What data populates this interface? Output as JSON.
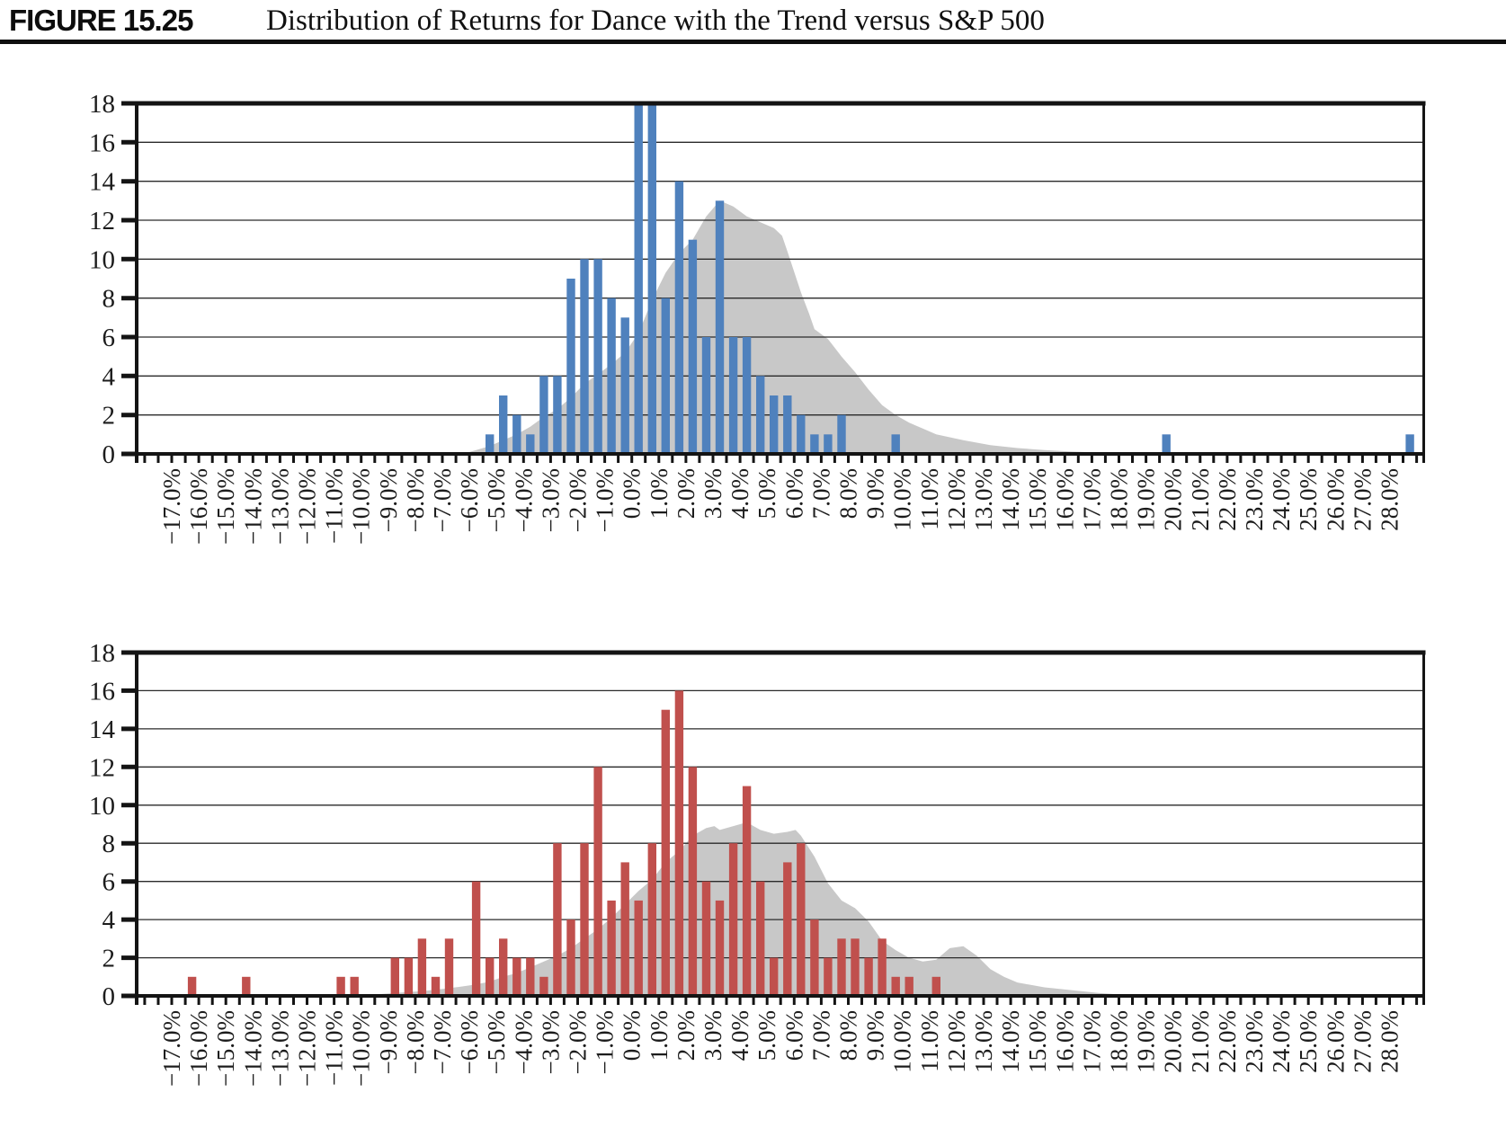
{
  "header": {
    "figure_label": "FIGURE 15.25",
    "title": "Distribution of Returns for Dance with the Trend versus S&P 500"
  },
  "x_axis": {
    "labels": [
      "−17.0%",
      "−16.0%",
      "−15.0%",
      "−14.0%",
      "−13.0%",
      "−12.0%",
      "−11.0%",
      "−10.0%",
      "−9.0%",
      "−8.0%",
      "−7.0%",
      "−6.0%",
      "−5.0%",
      "−4.0%",
      "−3.0%",
      "−2.0%",
      "−1.0%",
      "0.0%",
      "1.0%",
      "2.0%",
      "3.0%",
      "4.0%",
      "5.0%",
      "6.0%",
      "7.0%",
      "8.0%",
      "9.0%",
      "10.0%",
      "11.0%",
      "12.0%",
      "13.0%",
      "14.0%",
      "15.0%",
      "16.0%",
      "17.0%",
      "18.0%",
      "19.0%",
      "20.0%",
      "21.0%",
      "22.0%",
      "23.0%",
      "24.0%",
      "25.0%",
      "26.0%",
      "27.0%",
      "28.0%"
    ],
    "label_start_pct": -17,
    "label_step_pct": 1,
    "tick_step_pct": 0.5
  },
  "y_axis": {
    "labels": [
      "0",
      "2",
      "4",
      "6",
      "8",
      "10",
      "12",
      "14",
      "16",
      "18"
    ],
    "min": 0,
    "max": 18,
    "step": 2
  },
  "chart_data": [
    {
      "type": "bar",
      "position": "top",
      "bar_color": "#4f81bd",
      "area_color": "#c8c8c8",
      "ylim": [
        0,
        18
      ],
      "bin_width_pct": 0.5,
      "note": "bars at 0.0% and 0.5% are clipped at the plot top (value >= 18)",
      "bars": [
        [
          -5.5,
          1
        ],
        [
          -5,
          3
        ],
        [
          -4.5,
          2
        ],
        [
          -4,
          1
        ],
        [
          -3.5,
          4
        ],
        [
          -3,
          4
        ],
        [
          -2.5,
          9
        ],
        [
          -2,
          10
        ],
        [
          -1.5,
          10
        ],
        [
          -1,
          8
        ],
        [
          -0.5,
          7
        ],
        [
          0,
          18
        ],
        [
          0.5,
          18
        ],
        [
          1,
          8
        ],
        [
          1.5,
          14
        ],
        [
          2,
          11
        ],
        [
          2.5,
          6
        ],
        [
          3,
          13
        ],
        [
          3.5,
          6
        ],
        [
          4,
          6
        ],
        [
          4.5,
          4
        ],
        [
          5,
          3
        ],
        [
          5.5,
          3
        ],
        [
          6,
          2
        ],
        [
          6.5,
          1
        ],
        [
          7,
          1
        ],
        [
          7.5,
          2
        ],
        [
          9.5,
          1
        ],
        [
          19.5,
          1
        ],
        [
          28.5,
          1
        ]
      ],
      "area": [
        [
          -6.5,
          0
        ],
        [
          -6,
          0.2
        ],
        [
          -5.5,
          0.4
        ],
        [
          -5,
          0.7
        ],
        [
          -4.5,
          1
        ],
        [
          -4,
          1.4
        ],
        [
          -3.5,
          1.9
        ],
        [
          -3,
          2.3
        ],
        [
          -2.5,
          2.9
        ],
        [
          -2,
          3.6
        ],
        [
          -1.5,
          4.1
        ],
        [
          -1,
          4.6
        ],
        [
          -0.5,
          5.2
        ],
        [
          0,
          6.2
        ],
        [
          0.5,
          7.9
        ],
        [
          1,
          9.3
        ],
        [
          1.5,
          10.3
        ],
        [
          2,
          11
        ],
        [
          2.5,
          12.2
        ],
        [
          3,
          13
        ],
        [
          3.5,
          12.7
        ],
        [
          4,
          12.2
        ],
        [
          4.5,
          11.9
        ],
        [
          5,
          11.6
        ],
        [
          5.3,
          11.2
        ],
        [
          5.5,
          10.4
        ],
        [
          6,
          8.3
        ],
        [
          6.3,
          7.2
        ],
        [
          6.5,
          6.4
        ],
        [
          7,
          5.9
        ],
        [
          7.5,
          5
        ],
        [
          8,
          4.2
        ],
        [
          8.5,
          3.3
        ],
        [
          9,
          2.5
        ],
        [
          9.5,
          2
        ],
        [
          10,
          1.6
        ],
        [
          10.5,
          1.3
        ],
        [
          11,
          1
        ],
        [
          12,
          0.7
        ],
        [
          13,
          0.45
        ],
        [
          14,
          0.3
        ],
        [
          15,
          0.2
        ],
        [
          16,
          0.12
        ],
        [
          17,
          0.07
        ],
        [
          18,
          0.03
        ],
        [
          19,
          0
        ]
      ]
    },
    {
      "type": "bar",
      "position": "bottom",
      "bar_color": "#c0504d",
      "area_color": "#c8c8c8",
      "ylim": [
        0,
        18
      ],
      "bin_width_pct": 0.5,
      "bars": [
        [
          -16.5,
          1
        ],
        [
          -14.5,
          1
        ],
        [
          -11,
          1
        ],
        [
          -10.5,
          1
        ],
        [
          -9,
          2
        ],
        [
          -8.5,
          2
        ],
        [
          -8,
          3
        ],
        [
          -7.5,
          1
        ],
        [
          -7,
          3
        ],
        [
          -6,
          6
        ],
        [
          -5.5,
          2
        ],
        [
          -5,
          3
        ],
        [
          -4.5,
          2
        ],
        [
          -4,
          2
        ],
        [
          -3.5,
          1
        ],
        [
          -3,
          8
        ],
        [
          -2.5,
          4
        ],
        [
          -2,
          8
        ],
        [
          -1.5,
          12
        ],
        [
          -1,
          5
        ],
        [
          -0.5,
          7
        ],
        [
          0,
          5
        ],
        [
          0.5,
          8
        ],
        [
          1,
          15
        ],
        [
          1.5,
          16
        ],
        [
          2,
          12
        ],
        [
          2.5,
          6
        ],
        [
          3,
          5
        ],
        [
          3.5,
          8
        ],
        [
          4,
          11
        ],
        [
          4.5,
          6
        ],
        [
          5,
          2
        ],
        [
          5.5,
          7
        ],
        [
          6,
          8
        ],
        [
          6.5,
          4
        ],
        [
          7,
          2
        ],
        [
          7.5,
          3
        ],
        [
          8,
          3
        ],
        [
          8.5,
          2
        ],
        [
          9,
          3
        ],
        [
          9.5,
          1
        ],
        [
          10,
          1
        ],
        [
          11,
          1
        ]
      ],
      "area": [
        [
          -11.5,
          0
        ],
        [
          -10.5,
          0.05
        ],
        [
          -9.5,
          0.1
        ],
        [
          -9,
          0.15
        ],
        [
          -8,
          0.25
        ],
        [
          -7,
          0.4
        ],
        [
          -6,
          0.6
        ],
        [
          -5.5,
          0.75
        ],
        [
          -5,
          1
        ],
        [
          -4.5,
          1.2
        ],
        [
          -4,
          1.5
        ],
        [
          -3.5,
          1.8
        ],
        [
          -3,
          2.1
        ],
        [
          -2.5,
          2.5
        ],
        [
          -2,
          3
        ],
        [
          -1.5,
          3.5
        ],
        [
          -1,
          4.1
        ],
        [
          -0.5,
          4.8
        ],
        [
          0,
          5.5
        ],
        [
          0.5,
          6.1
        ],
        [
          1,
          7
        ],
        [
          1.5,
          7.6
        ],
        [
          2,
          8.4
        ],
        [
          2.5,
          8.8
        ],
        [
          2.8,
          8.9
        ],
        [
          3,
          8.7
        ],
        [
          3.5,
          8.9
        ],
        [
          4,
          9.1
        ],
        [
          4.5,
          8.7
        ],
        [
          5,
          8.5
        ],
        [
          5.5,
          8.6
        ],
        [
          5.8,
          8.7
        ],
        [
          6,
          8.4
        ],
        [
          6.5,
          7.3
        ],
        [
          7,
          5.9
        ],
        [
          7.5,
          5
        ],
        [
          8,
          4.6
        ],
        [
          8.5,
          3.9
        ],
        [
          9,
          2.9
        ],
        [
          9.5,
          2.4
        ],
        [
          10,
          2
        ],
        [
          10.5,
          1.8
        ],
        [
          11,
          1.9
        ],
        [
          11.5,
          2.5
        ],
        [
          12,
          2.6
        ],
        [
          12.5,
          2.1
        ],
        [
          13,
          1.4
        ],
        [
          13.5,
          1
        ],
        [
          14,
          0.7
        ],
        [
          15,
          0.45
        ],
        [
          16,
          0.3
        ],
        [
          17,
          0.15
        ],
        [
          18,
          0.05
        ],
        [
          18.5,
          0
        ]
      ]
    }
  ],
  "layout_colors": {
    "frame": "#141414",
    "gridline": "#2a2a2a",
    "tick": "#141414",
    "text": "#1c1c1c"
  }
}
